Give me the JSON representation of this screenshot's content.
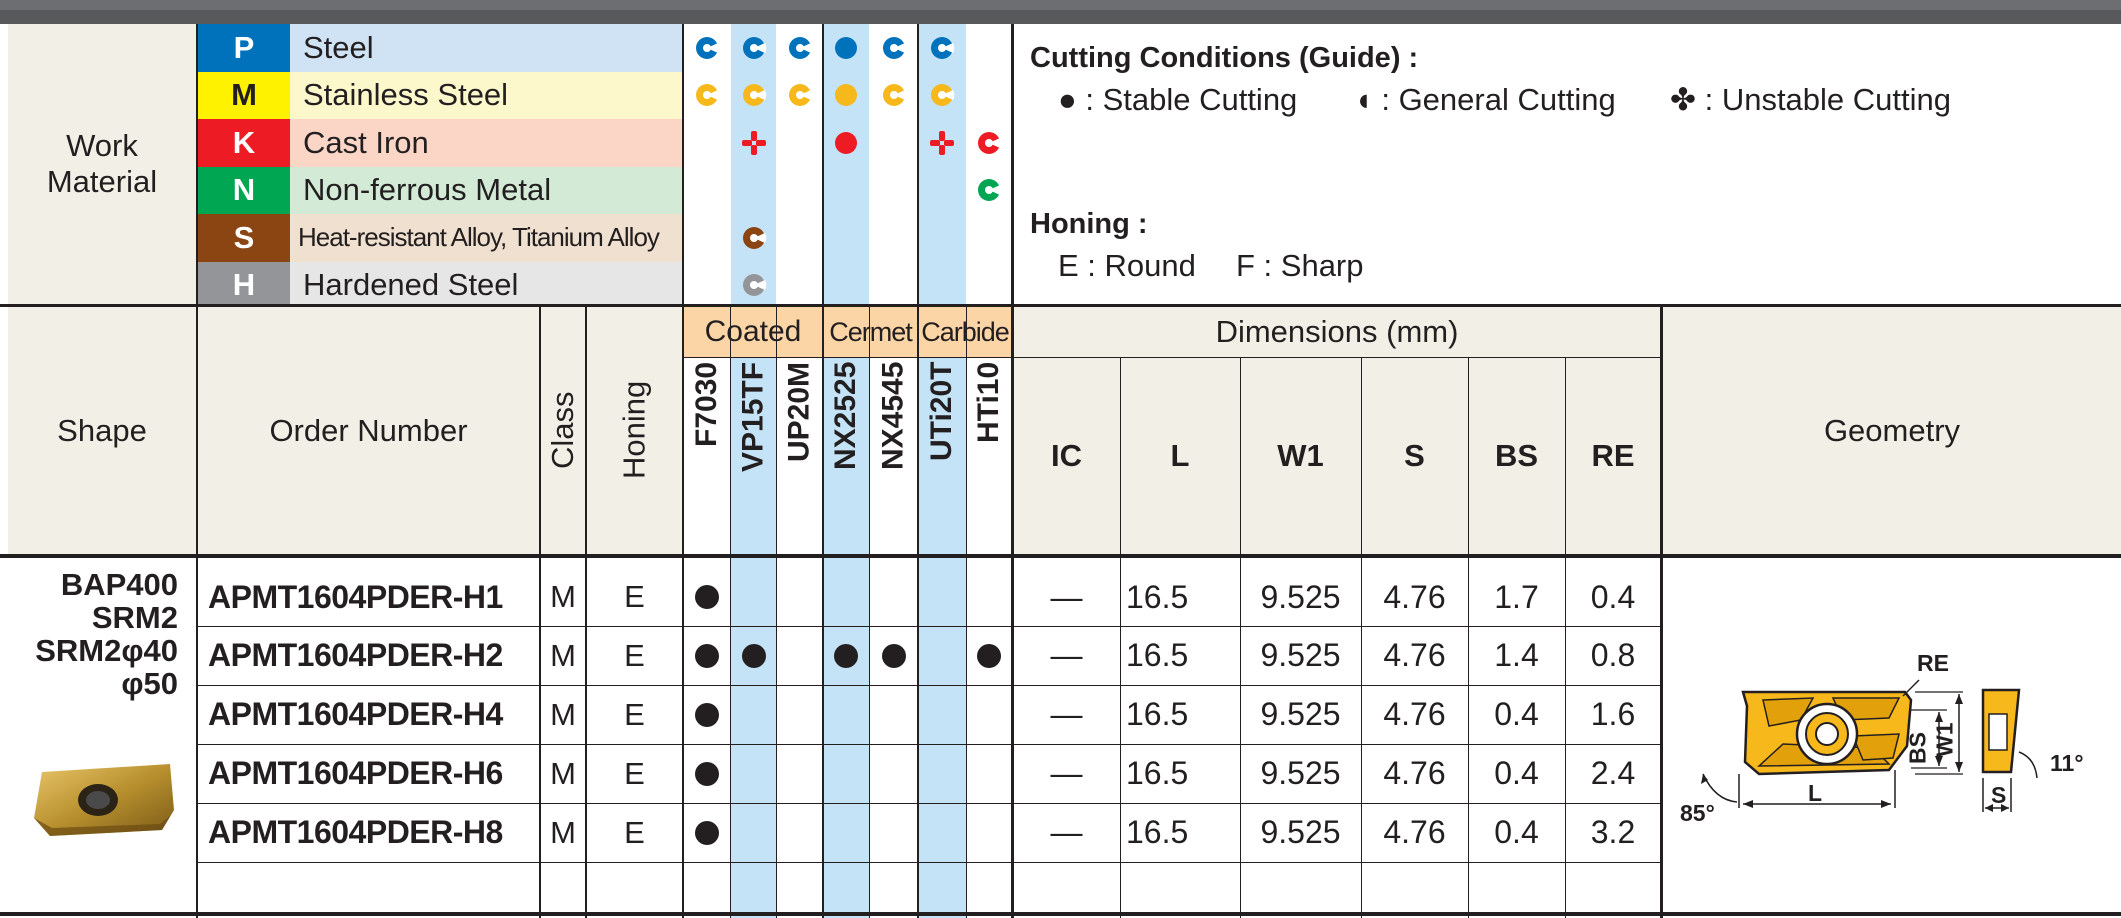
{
  "work_material": {
    "label_line1": "Work",
    "label_line2": "Material",
    "rows": [
      {
        "code": "P",
        "name": "Steel",
        "code_color": "#0072bc",
        "name_bg": "#cfe3f4"
      },
      {
        "code": "M",
        "name": "Stainless Steel",
        "code_color": "#fff200",
        "name_bg": "#fdf7cc"
      },
      {
        "code": "K",
        "name": "Cast Iron",
        "code_color": "#ed1c24",
        "name_bg": "#fbd6c7"
      },
      {
        "code": "N",
        "name": "Non-ferrous Metal",
        "code_color": "#00a651",
        "name_bg": "#d3ead7"
      },
      {
        "code": "S",
        "name": "Heat-resistant Alloy, Titanium Alloy",
        "code_color": "#8b4513",
        "name_bg": "#f0e0cf"
      },
      {
        "code": "H",
        "name": "Hardened Steel",
        "code_color": "#939598",
        "name_bg": "#e6e6e6"
      }
    ]
  },
  "conditions": {
    "title": "Cutting Conditions (Guide) :",
    "stable": "● : Stable Cutting",
    "general": "◖ : General Cutting",
    "unstable": "✤ : Unstable Cutting"
  },
  "honing_legend": {
    "title": "Honing :",
    "round": "E : Round",
    "sharp": "F : Sharp"
  },
  "headers": {
    "shape": "Shape",
    "order_number": "Order Number",
    "class": "Class",
    "honing": "Honing",
    "coated": "Coated",
    "cermet": "Cermet",
    "carbide": "Carbide",
    "dimensions": "Dimensions (mm)",
    "geometry": "Geometry",
    "dim_cols": [
      "IC",
      "L",
      "W1",
      "S",
      "BS",
      "RE"
    ]
  },
  "grades": [
    "F7030",
    "VP15TF",
    "UP20M",
    "NX2525",
    "NX4545",
    "UTi20T",
    "HTi10"
  ],
  "suitability_icons": [
    {
      "grade": "F7030",
      "material": "P",
      "type": "general"
    },
    {
      "grade": "F7030",
      "material": "M",
      "type": "general"
    },
    {
      "grade": "VP15TF",
      "material": "P",
      "type": "general"
    },
    {
      "grade": "VP15TF",
      "material": "M",
      "type": "general"
    },
    {
      "grade": "VP15TF",
      "material": "K",
      "type": "unstable"
    },
    {
      "grade": "VP15TF",
      "material": "S",
      "type": "general"
    },
    {
      "grade": "VP15TF",
      "material": "H",
      "type": "general"
    },
    {
      "grade": "UP20M",
      "material": "P",
      "type": "general"
    },
    {
      "grade": "UP20M",
      "material": "M",
      "type": "general"
    },
    {
      "grade": "NX2525",
      "material": "P",
      "type": "stable"
    },
    {
      "grade": "NX2525",
      "material": "M",
      "type": "stable"
    },
    {
      "grade": "NX2525",
      "material": "K",
      "type": "stable"
    },
    {
      "grade": "NX4545",
      "material": "P",
      "type": "general"
    },
    {
      "grade": "NX4545",
      "material": "M",
      "type": "general"
    },
    {
      "grade": "UTi20T",
      "material": "P",
      "type": "general"
    },
    {
      "grade": "UTi20T",
      "material": "M",
      "type": "general"
    },
    {
      "grade": "UTi20T",
      "material": "K",
      "type": "unstable"
    },
    {
      "grade": "HTi10",
      "material": "K",
      "type": "general"
    },
    {
      "grade": "HTi10",
      "material": "N",
      "type": "general"
    }
  ],
  "shape_label": {
    "line1": "BAP400",
    "line2": "SRM2",
    "line3": "SRM2φ40",
    "line4": "φ50"
  },
  "rows": [
    {
      "order": "APMT1604PDER-H1",
      "class": "M",
      "honing": "E",
      "ic": "—",
      "l": "16.5",
      "w1": "9.525",
      "s": "4.76",
      "bs": "1.7",
      "re": "0.4",
      "stock": [
        true,
        false,
        false,
        false,
        false,
        false,
        false
      ]
    },
    {
      "order": "APMT1604PDER-H2",
      "class": "M",
      "honing": "E",
      "ic": "—",
      "l": "16.5",
      "w1": "9.525",
      "s": "4.76",
      "bs": "1.4",
      "re": "0.8",
      "stock": [
        true,
        true,
        false,
        true,
        true,
        false,
        true
      ]
    },
    {
      "order": "APMT1604PDER-H4",
      "class": "M",
      "honing": "E",
      "ic": "—",
      "l": "16.5",
      "w1": "9.525",
      "s": "4.76",
      "bs": "0.4",
      "re": "1.6",
      "stock": [
        true,
        false,
        false,
        false,
        false,
        false,
        false
      ]
    },
    {
      "order": "APMT1604PDER-H6",
      "class": "M",
      "honing": "E",
      "ic": "—",
      "l": "16.5",
      "w1": "9.525",
      "s": "4.76",
      "bs": "0.4",
      "re": "2.4",
      "stock": [
        true,
        false,
        false,
        false,
        false,
        false,
        false
      ]
    },
    {
      "order": "APMT1604PDER-H8",
      "class": "M",
      "honing": "E",
      "ic": "—",
      "l": "16.5",
      "w1": "9.525",
      "s": "4.76",
      "bs": "0.4",
      "re": "3.2",
      "stock": [
        true,
        false,
        false,
        false,
        false,
        false,
        false
      ]
    }
  ],
  "geometry_labels": {
    "re": "RE",
    "bs": "BS",
    "w1": "W1",
    "l": "L",
    "s": "S",
    "angle_85": "85°",
    "angle_11": "11°"
  },
  "colors": {
    "coated_header": "#fcd5a6",
    "grade_highlight": "#c5e3f6",
    "header_bg": "#f2efe6",
    "top_bar": "#58595b",
    "icon_gold": "#f7b81c"
  }
}
